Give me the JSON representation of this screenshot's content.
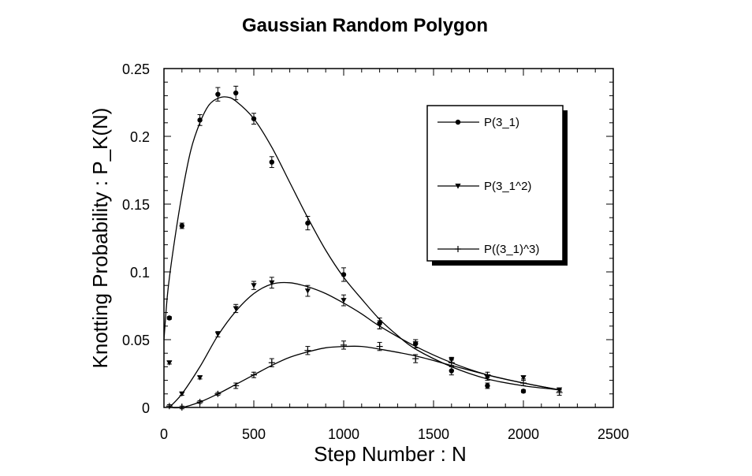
{
  "chart_data": {
    "type": "scatter",
    "title": "Gaussian Random Polygon",
    "xlabel": "Step Number : N",
    "ylabel": "Knotting Probability : P_K(N)",
    "xlim": [
      0,
      2500
    ],
    "ylim": [
      0,
      0.25
    ],
    "xticks": [
      0,
      500,
      1000,
      1500,
      2000,
      2500
    ],
    "xtick_labels": [
      "0",
      "500",
      "1000",
      "1500",
      "2000",
      "2500"
    ],
    "yticks": [
      0,
      0.05,
      0.1,
      0.15,
      0.2,
      0.25
    ],
    "ytick_labels": [
      "0",
      "0.05",
      "0.1",
      "0.15",
      "0.2",
      "0.25"
    ],
    "grid": false,
    "legend_position": "top-right",
    "colors": {
      "ink": "#000000",
      "background": "#ffffff",
      "legend_shadow": "#000000"
    },
    "series": [
      {
        "name": "P(3_1)",
        "marker": "circle",
        "points": [
          {
            "x": 30,
            "y": 0.066
          },
          {
            "x": 100,
            "y": 0.134
          },
          {
            "x": 200,
            "y": 0.212
          },
          {
            "x": 300,
            "y": 0.231
          },
          {
            "x": 400,
            "y": 0.232
          },
          {
            "x": 500,
            "y": 0.213
          },
          {
            "x": 600,
            "y": 0.181
          },
          {
            "x": 800,
            "y": 0.136
          },
          {
            "x": 1000,
            "y": 0.098
          },
          {
            "x": 1200,
            "y": 0.062
          },
          {
            "x": 1400,
            "y": 0.047
          },
          {
            "x": 1600,
            "y": 0.027
          },
          {
            "x": 1800,
            "y": 0.016
          },
          {
            "x": 2000,
            "y": 0.012
          }
        ],
        "errors": [
          0.001,
          0.002,
          0.004,
          0.005,
          0.005,
          0.004,
          0.004,
          0.005,
          0.005,
          0.004,
          0.003,
          0.003,
          0.002,
          0.001
        ],
        "fit": [
          {
            "x": 0,
            "y": 0.05
          },
          {
            "x": 20,
            "y": 0.084
          },
          {
            "x": 50,
            "y": 0.115
          },
          {
            "x": 100,
            "y": 0.157
          },
          {
            "x": 150,
            "y": 0.19
          },
          {
            "x": 200,
            "y": 0.21
          },
          {
            "x": 250,
            "y": 0.223
          },
          {
            "x": 300,
            "y": 0.228
          },
          {
            "x": 350,
            "y": 0.229
          },
          {
            "x": 400,
            "y": 0.226
          },
          {
            "x": 500,
            "y": 0.213
          },
          {
            "x": 600,
            "y": 0.192
          },
          {
            "x": 700,
            "y": 0.166
          },
          {
            "x": 800,
            "y": 0.14
          },
          {
            "x": 900,
            "y": 0.116
          },
          {
            "x": 1000,
            "y": 0.096
          },
          {
            "x": 1100,
            "y": 0.08
          },
          {
            "x": 1200,
            "y": 0.065
          },
          {
            "x": 1300,
            "y": 0.053
          },
          {
            "x": 1400,
            "y": 0.043
          },
          {
            "x": 1600,
            "y": 0.03
          },
          {
            "x": 1800,
            "y": 0.021
          },
          {
            "x": 2000,
            "y": 0.016
          },
          {
            "x": 2200,
            "y": 0.013
          }
        ]
      },
      {
        "name": "P(3_1^2)",
        "marker": "triangle-down",
        "points": [
          {
            "x": 30,
            "y": 0.033
          },
          {
            "x": 100,
            "y": 0.01
          },
          {
            "x": 200,
            "y": 0.022
          },
          {
            "x": 300,
            "y": 0.054
          },
          {
            "x": 400,
            "y": 0.073
          },
          {
            "x": 500,
            "y": 0.09
          },
          {
            "x": 600,
            "y": 0.092
          },
          {
            "x": 800,
            "y": 0.086
          },
          {
            "x": 1000,
            "y": 0.079
          },
          {
            "x": 1200,
            "y": 0.061
          },
          {
            "x": 1400,
            "y": 0.047
          },
          {
            "x": 1600,
            "y": 0.035
          },
          {
            "x": 1800,
            "y": 0.022
          },
          {
            "x": 2000,
            "y": 0.022
          },
          {
            "x": 2200,
            "y": 0.013
          }
        ],
        "errors": [
          0.001,
          0.001,
          0.001,
          0.002,
          0.003,
          0.003,
          0.004,
          0.004,
          0.004,
          0.003,
          0.003,
          0.002,
          0.002,
          0.001,
          0.001
        ],
        "fit": [
          {
            "x": 30,
            "y": 0.0
          },
          {
            "x": 100,
            "y": 0.01
          },
          {
            "x": 200,
            "y": 0.03
          },
          {
            "x": 300,
            "y": 0.053
          },
          {
            "x": 400,
            "y": 0.071
          },
          {
            "x": 500,
            "y": 0.084
          },
          {
            "x": 600,
            "y": 0.091
          },
          {
            "x": 700,
            "y": 0.092
          },
          {
            "x": 800,
            "y": 0.089
          },
          {
            "x": 900,
            "y": 0.084
          },
          {
            "x": 1000,
            "y": 0.077
          },
          {
            "x": 1100,
            "y": 0.069
          },
          {
            "x": 1200,
            "y": 0.06
          },
          {
            "x": 1400,
            "y": 0.045
          },
          {
            "x": 1600,
            "y": 0.033
          },
          {
            "x": 1800,
            "y": 0.024
          },
          {
            "x": 2000,
            "y": 0.018
          },
          {
            "x": 2200,
            "y": 0.013
          }
        ]
      },
      {
        "name": "P((3_1)^3)",
        "marker": "plus",
        "points": [
          {
            "x": 30,
            "y": 0.001
          },
          {
            "x": 100,
            "y": 0.0
          },
          {
            "x": 200,
            "y": 0.004
          },
          {
            "x": 300,
            "y": 0.01
          },
          {
            "x": 400,
            "y": 0.016
          },
          {
            "x": 500,
            "y": 0.024
          },
          {
            "x": 600,
            "y": 0.033
          },
          {
            "x": 800,
            "y": 0.042
          },
          {
            "x": 1000,
            "y": 0.046
          },
          {
            "x": 1200,
            "y": 0.045
          },
          {
            "x": 1400,
            "y": 0.036
          },
          {
            "x": 1600,
            "y": 0.033
          },
          {
            "x": 1800,
            "y": 0.024
          },
          {
            "x": 2000,
            "y": 0.018
          },
          {
            "x": 2200,
            "y": 0.011
          }
        ],
        "errors": [
          0.001,
          0.001,
          0.001,
          0.001,
          0.002,
          0.002,
          0.003,
          0.003,
          0.003,
          0.003,
          0.003,
          0.002,
          0.002,
          0.002,
          0.002
        ],
        "fit": [
          {
            "x": 30,
            "y": 0.0
          },
          {
            "x": 100,
            "y": 0.0
          },
          {
            "x": 200,
            "y": 0.004
          },
          {
            "x": 300,
            "y": 0.01
          },
          {
            "x": 400,
            "y": 0.017
          },
          {
            "x": 500,
            "y": 0.024
          },
          {
            "x": 600,
            "y": 0.031
          },
          {
            "x": 700,
            "y": 0.037
          },
          {
            "x": 800,
            "y": 0.041
          },
          {
            "x": 900,
            "y": 0.044
          },
          {
            "x": 1000,
            "y": 0.045
          },
          {
            "x": 1100,
            "y": 0.045
          },
          {
            "x": 1200,
            "y": 0.043
          },
          {
            "x": 1400,
            "y": 0.038
          },
          {
            "x": 1600,
            "y": 0.031
          },
          {
            "x": 1800,
            "y": 0.024
          },
          {
            "x": 2000,
            "y": 0.018
          },
          {
            "x": 2200,
            "y": 0.013
          }
        ]
      }
    ]
  }
}
